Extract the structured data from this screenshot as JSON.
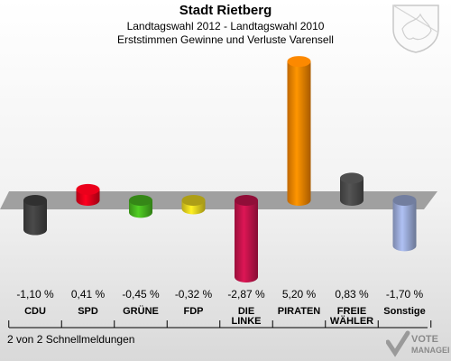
{
  "header": {
    "city": "Stadt Rietberg",
    "election": "Landtagswahl 2012 - Landtagswahl 2010",
    "subtitle": "Erststimmen Gewinne und Verluste Varensell"
  },
  "footer": {
    "note": "2 von 2 Schnellmeldungen"
  },
  "branding": {
    "logo_line1": "VOTE",
    "logo_line2": "MANAGER"
  },
  "chart_data": {
    "type": "bar",
    "title": "Stadt Rietberg",
    "categories": [
      "CDU",
      "SPD",
      "GRÜNE",
      "FDP",
      "DIE LINKE",
      "PIRATEN",
      "FREIE WÄHLER",
      "Sonstige"
    ],
    "category_labels": [
      [
        "CDU"
      ],
      [
        "SPD"
      ],
      [
        "GRÜNE"
      ],
      [
        "FDP"
      ],
      [
        "DIE",
        "LINKE"
      ],
      [
        "PIRATEN"
      ],
      [
        "FREIE",
        "WÄHLER"
      ],
      [
        "Sonstige"
      ]
    ],
    "values": [
      -1.1,
      0.41,
      -0.45,
      -0.32,
      -2.87,
      5.2,
      0.83,
      -1.7
    ],
    "value_labels": [
      "-1,10 %",
      "0,41 %",
      "-0,45 %",
      "-0,32 %",
      "-2,87 %",
      "5,20 %",
      "0,83 %",
      "-1,70 %"
    ],
    "colors": [
      "#404040",
      "#e0001a",
      "#46b41e",
      "#e6d21e",
      "#c0134a",
      "#f08200",
      "#4a4a4a",
      "#98a8d4"
    ],
    "legend": "none",
    "grid": false
  }
}
